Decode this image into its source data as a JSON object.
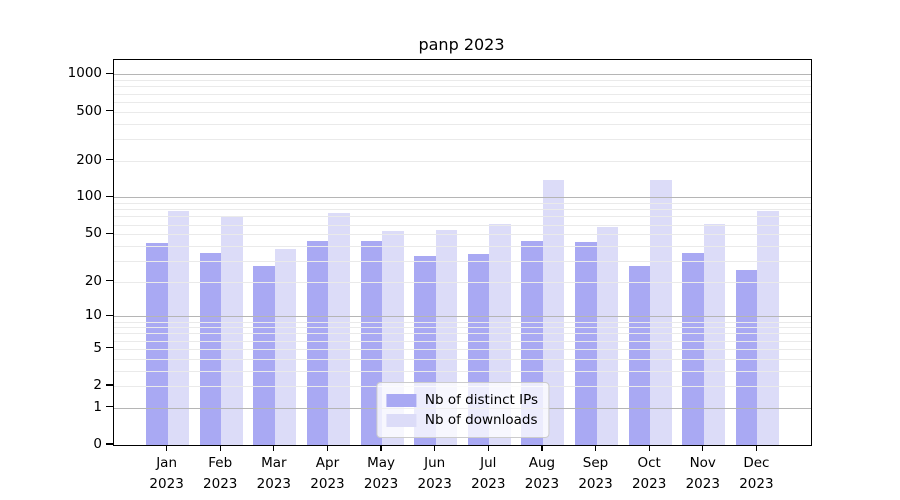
{
  "chart_data": {
    "type": "bar",
    "title": "panp 2023",
    "categories": [
      "Jan",
      "Feb",
      "Mar",
      "Apr",
      "May",
      "Jun",
      "Jul",
      "Aug",
      "Sep",
      "Oct",
      "Nov",
      "Dec"
    ],
    "year_label": "2023",
    "series": [
      {
        "name": "Nb of distinct IPs",
        "color": "#a9a9f3",
        "values": [
          42,
          35,
          27,
          44,
          44,
          33,
          34,
          44,
          43,
          27,
          35,
          25
        ]
      },
      {
        "name": "Nb of downloads",
        "color": "#dcdcf8",
        "values": [
          78,
          70,
          38,
          74,
          53,
          54,
          61,
          138,
          57,
          140,
          61,
          77
        ]
      }
    ],
    "xlabel": "",
    "ylabel": "",
    "y_scale": "log1p",
    "y_ticks": [
      0,
      1,
      2,
      5,
      10,
      20,
      50,
      100,
      200,
      500,
      1000
    ],
    "y_major_gridlines": [
      1,
      10,
      100,
      1000
    ],
    "y_minor_gridlines": [
      2,
      3,
      4,
      5,
      6,
      7,
      8,
      9,
      20,
      30,
      40,
      50,
      60,
      70,
      80,
      90,
      200,
      300,
      400,
      500,
      600,
      700,
      800,
      900
    ],
    "ylim": [
      0,
      1310
    ],
    "grid": true,
    "legend_position": "lower center",
    "colors": {
      "major_gridline": "#b5b5b5",
      "minor_gridline": "#eaeaea",
      "axis": "#000000",
      "text": "#000000"
    }
  }
}
